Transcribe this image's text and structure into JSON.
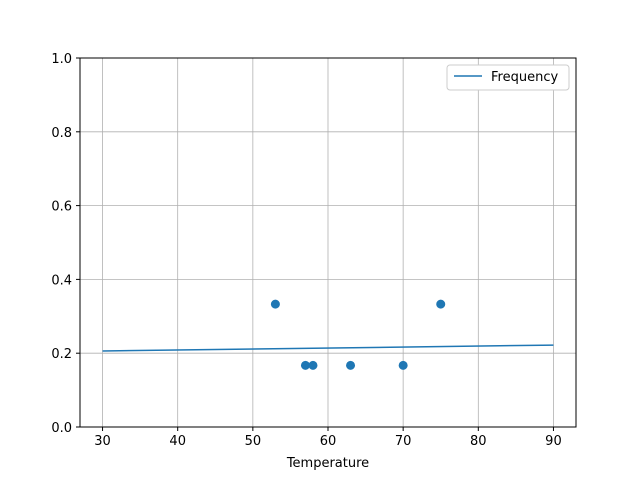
{
  "chart_data": {
    "type": "scatter",
    "title": "",
    "xlabel": "Temperature",
    "ylabel": "",
    "xlim": [
      27,
      93
    ],
    "ylim": [
      0,
      1.0
    ],
    "xticks": [
      "30",
      "40",
      "50",
      "60",
      "70",
      "80",
      "90"
    ],
    "yticks": [
      "0.0",
      "0.2",
      "0.4",
      "0.6",
      "0.8",
      "1.0"
    ],
    "grid": true,
    "legend": {
      "position": "top-right",
      "entries": [
        "Frequency"
      ]
    },
    "series": [
      {
        "name": "Frequency",
        "type": "line",
        "color": "#1f77b4",
        "x": [
          30,
          90
        ],
        "y": [
          0.206,
          0.222
        ]
      },
      {
        "type": "scatter",
        "color": "#1f77b4",
        "x": [
          53,
          57,
          58,
          63,
          70,
          75
        ],
        "y": [
          0.333,
          0.167,
          0.167,
          0.167,
          0.167,
          0.333
        ]
      }
    ]
  }
}
